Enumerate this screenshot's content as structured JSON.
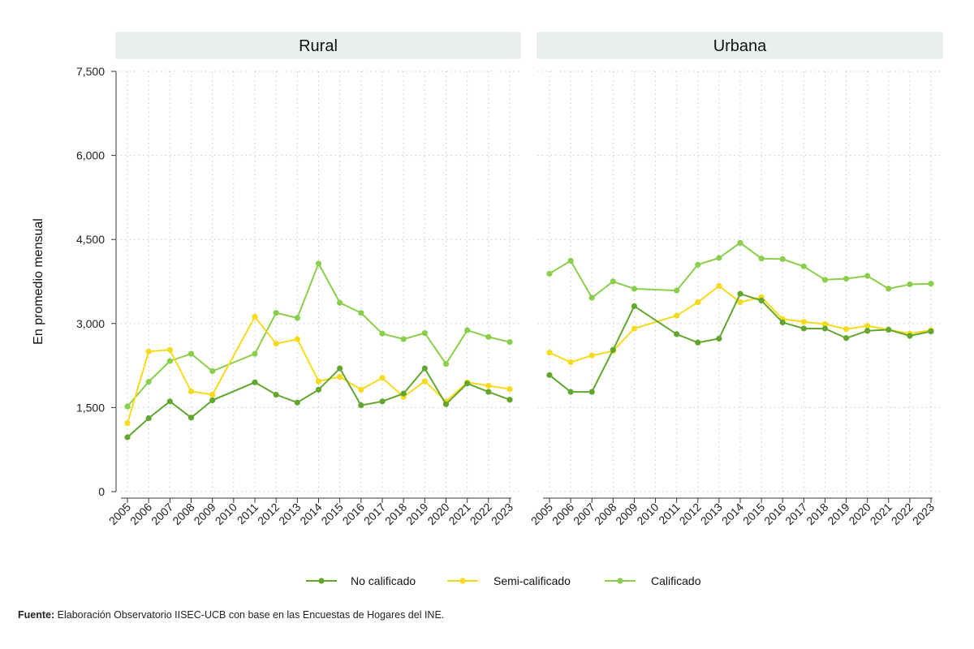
{
  "source": {
    "label": "Fuente:",
    "text": "Elaboración Observatorio IISEC-UCB con base en las Encuestas de Hogares del INE."
  },
  "colors": {
    "no_calificado": "#62A630",
    "semi_calificado": "#F6DA1C",
    "calificado": "#8ACF4B",
    "strip": "#E9F0EE",
    "grid": "#C8C8C8"
  },
  "chart_data": {
    "type": "line",
    "ylabel": "En promedio mensual",
    "ylim": [
      0,
      7500
    ],
    "yticks": [
      0,
      1500,
      3000,
      4500,
      6000,
      7500
    ],
    "ytick_labels": [
      "0",
      "1,500",
      "3,000",
      "4,500",
      "6,000",
      "7,500"
    ],
    "grid": true,
    "legend_position": "bottom",
    "x": [
      "2005",
      "2006",
      "2007",
      "2008",
      "2009",
      "2010",
      "2011",
      "2012",
      "2013",
      "2014",
      "2015",
      "2016",
      "2017",
      "2018",
      "2019",
      "2020",
      "2021",
      "2022",
      "2023"
    ],
    "legend": [
      {
        "key": "no_calificado",
        "name": "No calificado"
      },
      {
        "key": "semi_calificado",
        "name": "Semi-calificado"
      },
      {
        "key": "calificado",
        "name": "Calificado"
      }
    ],
    "panels": [
      {
        "title": "Rural",
        "series": [
          {
            "key": "calificado",
            "name": "Calificado",
            "values": [
              1520,
              1960,
              2330,
              2460,
              2150,
              null,
              2460,
              3190,
              3100,
              4070,
              3370,
              3190,
              2820,
              2720,
              2830,
              2280,
              2880,
              2760,
              2670
            ]
          },
          {
            "key": "semi_calificado",
            "name": "Semi-calificado",
            "values": [
              1220,
              2500,
              2530,
              1790,
              1730,
              null,
              3120,
              2640,
              2720,
              1970,
              2050,
              1820,
              2030,
              1690,
              1970,
              1610,
              1950,
              1890,
              1830
            ]
          },
          {
            "key": "no_calificado",
            "name": "No calificado",
            "values": [
              970,
              1310,
              1610,
              1320,
              1630,
              null,
              1950,
              1730,
              1590,
              1820,
              2200,
              1540,
              1610,
              1750,
              2200,
              1560,
              1930,
              1780,
              1640
            ]
          }
        ]
      },
      {
        "title": "Urbana",
        "series": [
          {
            "key": "calificado",
            "name": "Calificado",
            "values": [
              3890,
              4120,
              3460,
              3750,
              3620,
              null,
              3590,
              4050,
              4170,
              4440,
              4160,
              4150,
              4020,
              3780,
              3800,
              3850,
              3620,
              3700,
              3710
            ]
          },
          {
            "key": "semi_calificado",
            "name": "Semi-calificado",
            "values": [
              2480,
              2310,
              2430,
              2510,
              2910,
              null,
              3140,
              3380,
              3670,
              3380,
              3470,
              3080,
              3030,
              2990,
              2900,
              2960,
              2890,
              2820,
              2880
            ]
          },
          {
            "key": "no_calificado",
            "name": "No calificado",
            "values": [
              2080,
              1780,
              1780,
              2530,
              3310,
              null,
              2810,
              2660,
              2730,
              3530,
              3410,
              3020,
              2910,
              2910,
              2740,
              2870,
              2890,
              2780,
              2860
            ]
          }
        ]
      }
    ]
  }
}
